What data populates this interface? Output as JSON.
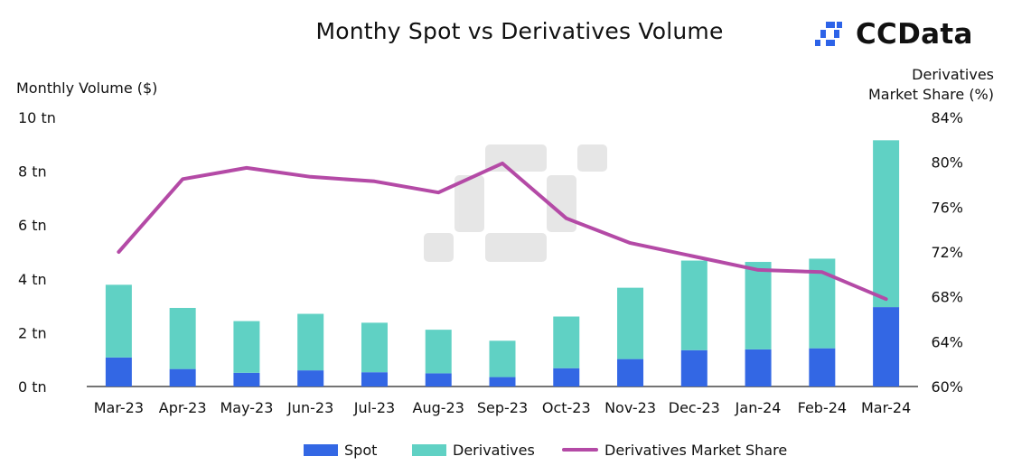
{
  "chart_data": {
    "type": "bar",
    "title": "Monthy Spot vs Derivatives Volume",
    "xlabel": "",
    "ylabel": "Monthly Volume ($)",
    "y2label_line1": "Derivatives",
    "y2label_line2": "Market Share (%)",
    "ylim": [
      0,
      10
    ],
    "y2lim": [
      60,
      84
    ],
    "yticks": [
      0,
      2,
      4,
      6,
      8,
      10
    ],
    "ytick_labels": [
      "0 tn",
      "2 tn",
      "4 tn",
      "6 tn",
      "8 tn",
      "10 tn"
    ],
    "y2ticks": [
      60,
      64,
      68,
      72,
      76,
      80,
      84
    ],
    "y2tick_labels": [
      "60%",
      "64%",
      "68%",
      "72%",
      "76%",
      "80%",
      "84%"
    ],
    "categories": [
      "Mar-23",
      "Apr-23",
      "May-23",
      "Jun-23",
      "Jul-23",
      "Aug-23",
      "Sep-23",
      "Oct-23",
      "Nov-23",
      "Dec-23",
      "Jan-24",
      "Feb-24",
      "Mar-24"
    ],
    "series": [
      {
        "name": "Spot",
        "kind": "stacked-bar",
        "color": "#3367e4",
        "values": [
          1.08,
          0.65,
          0.51,
          0.6,
          0.53,
          0.49,
          0.35,
          0.68,
          1.02,
          1.35,
          1.38,
          1.42,
          2.95
        ]
      },
      {
        "name": "Derivatives",
        "kind": "stacked-bar",
        "color": "#60d1c4",
        "values": [
          2.7,
          2.27,
          1.92,
          2.1,
          1.84,
          1.62,
          1.35,
          1.92,
          2.65,
          3.33,
          3.25,
          3.33,
          6.2
        ]
      },
      {
        "name": "Derivatives Market Share",
        "kind": "line",
        "axis": "right",
        "color": "#b44aa6",
        "values": [
          72.0,
          78.5,
          79.5,
          78.7,
          78.3,
          77.3,
          79.9,
          75.0,
          72.8,
          71.6,
          70.4,
          70.2,
          67.8
        ]
      }
    ],
    "legend_position": "bottom"
  },
  "brand": {
    "name": "CCData",
    "accent": "#2d63e8"
  }
}
